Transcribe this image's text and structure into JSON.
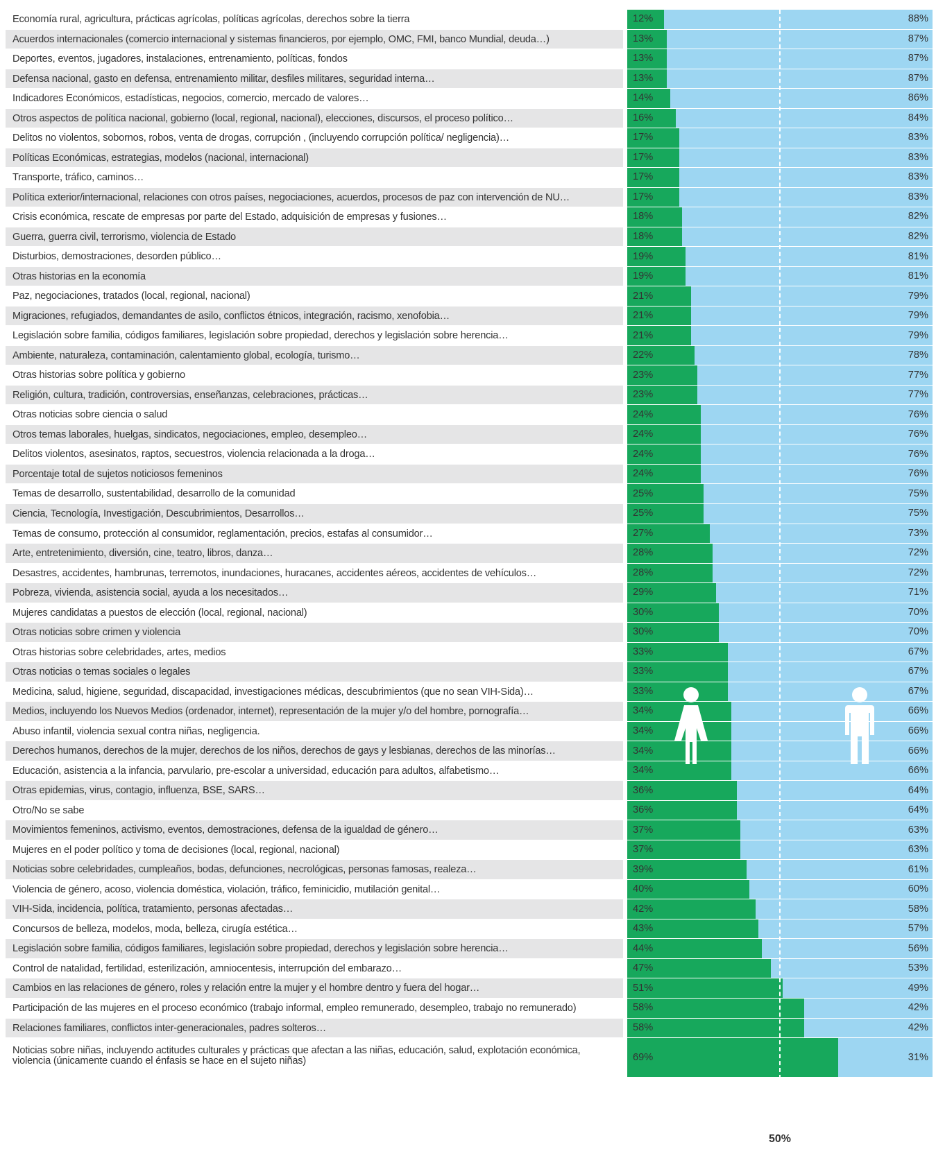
{
  "chart_data": {
    "type": "stacked-bar-horizontal",
    "categories": [
      "Economía rural, agricultura, prácticas agrícolas, políticas agrícolas, derechos sobre la tierra",
      "Acuerdos internacionales (comercio internacional y sistemas financieros, por ejemplo, OMC, FMI, banco Mundial, deuda…)",
      "Deportes, eventos, jugadores, instalaciones, entrenamiento, políticas, fondos",
      "Defensa nacional, gasto en defensa, entrenamiento militar, desfiles militares, seguridad interna…",
      "Indicadores Económicos, estadísticas, negocios, comercio, mercado de valores…",
      "Otros aspectos de política nacional, gobierno (local, regional, nacional), elecciones, discursos, el proceso político…",
      "Delitos no violentos, sobornos, robos, venta de drogas, corrupción , (incluyendo corrupción política/ negligencia)…",
      "Políticas Económicas, estrategias, modelos (nacional, internacional)",
      "Transporte, tráfico, caminos…",
      "Política exterior/internacional, relaciones con otros países, negociaciones, acuerdos, procesos de paz con intervención de NU…",
      "Crisis económica, rescate de empresas por parte del Estado, adquisición de empresas y fusiones…",
      "Guerra, guerra civil, terrorismo, violencia de Estado",
      "Disturbios, demostraciones, desorden público…",
      "Otras historias en la economía",
      "Paz, negociaciones, tratados (local, regional, nacional)",
      "Migraciones, refugiados, demandantes de asilo, conflictos étnicos, integración, racismo, xenofobia…",
      "Legislación sobre familia, códigos familiares, legislación sobre propiedad, derechos y legislación sobre herencia…",
      "Ambiente, naturaleza, contaminación, calentamiento global, ecología, turismo…",
      "Otras historias sobre política y gobierno",
      "Religión, cultura, tradición, controversias, enseñanzas, celebraciones, prácticas…",
      "Otras noticias sobre ciencia o salud",
      "Otros temas laborales, huelgas, sindicatos, negociaciones, empleo, desempleo…",
      "Delitos violentos, asesinatos, raptos, secuestros, violencia relacionada a la droga…",
      "Porcentaje total de sujetos noticiosos femeninos",
      "Temas de desarrollo, sustentabilidad, desarrollo de la comunidad",
      "Ciencia, Tecnología, Investigación, Descubrimientos, Desarrollos…",
      "Temas de consumo, protección al consumidor, reglamentación, precios, estafas al consumidor…",
      "Arte, entretenimiento, diversión, cine, teatro, libros, danza…",
      "Desastres, accidentes, hambrunas, terremotos, inundaciones, huracanes, accidentes aéreos, accidentes de vehículos…",
      "Pobreza, vivienda, asistencia social, ayuda a los necesitados…",
      "Mujeres candidatas a puestos de elección (local, regional, nacional)",
      "Otras noticias sobre crimen y violencia",
      "Otras historias sobre celebridades, artes, medios",
      "Otras noticias o temas sociales o legales",
      "Medicina, salud, higiene, seguridad, discapacidad, investigaciones médicas, descubrimientos (que no sean VIH-Sida)…",
      "Medios, incluyendo los Nuevos Medios (ordenador, internet), representación de la mujer y/o del hombre, pornografía…",
      "Abuso infantil, violencia sexual contra niñas, negligencia.",
      "Derechos humanos, derechos de la mujer, derechos de los niños, derechos de gays y lesbianas, derechos de las minorías…",
      "Educación, asistencia a la infancia, parvulario, pre-escolar a universidad, educación para adultos, alfabetismo…",
      "Otras epidemias, virus, contagio, influenza, BSE, SARS…",
      "Otro/No se sabe",
      "Movimientos femeninos, activismo, eventos, demostraciones, defensa de la igualdad de género…",
      "Mujeres en el poder político y toma de decisiones (local, regional, nacional)",
      "Noticias sobre celebridades, cumpleaños, bodas, defunciones, necrológicas, personas famosas, realeza…",
      "Violencia de género, acoso, violencia doméstica, violación, tráfico, feminicidio, mutilación genital…",
      "VIH-Sida, incidencia, política, tratamiento, personas afectadas…",
      "Concursos de belleza, modelos, moda, belleza, cirugía estética…",
      "Legislación sobre familia, códigos familiares, legislación sobre propiedad, derechos y legislación sobre herencia…",
      "Control de natalidad, fertilidad, esterilización, amniocentesis, interrupción del embarazo…",
      "Cambios en las relaciones de género, roles y relación entre la mujer y el hombre dentro y fuera del hogar…",
      "Participación de las mujeres en el proceso económico (trabajo informal, empleo remunerado, desempleo, trabajo no remunerado)",
      "Relaciones familiares, conflictos inter-generacionales, padres solteros…",
      "Noticias sobre niñas, incluyendo actitudes culturales y prácticas que afectan a las niñas, educación, salud, explotación económica, violencia (únicamente cuando el énfasis se hace en el sujeto niñas)"
    ],
    "series": [
      {
        "color": "#17a85c",
        "values": [
          12,
          13,
          13,
          13,
          14,
          16,
          17,
          17,
          17,
          17,
          18,
          18,
          19,
          19,
          21,
          21,
          21,
          22,
          23,
          23,
          24,
          24,
          24,
          24,
          25,
          25,
          27,
          28,
          28,
          29,
          30,
          30,
          33,
          33,
          33,
          34,
          34,
          34,
          34,
          36,
          36,
          37,
          37,
          39,
          40,
          42,
          43,
          44,
          47,
          51,
          58,
          58,
          69
        ],
        "value_labels": [
          "12%",
          "13%",
          "13%",
          "13%",
          "14%",
          "16%",
          "17%",
          "17%",
          "17%",
          "17%",
          "18%",
          "18%",
          "19%",
          "19%",
          "21%",
          "21%",
          "21%",
          "22%",
          "23%",
          "23%",
          "24%",
          "24%",
          "24%",
          "24%",
          "25%",
          "25%",
          "27%",
          "28%",
          "28%",
          "29%",
          "30%",
          "30%",
          "33%",
          "33%",
          "33%",
          "34%",
          "34%",
          "34%",
          "34%",
          "36%",
          "36%",
          "37%",
          "37%",
          "39%",
          "40%",
          "42%",
          "43%",
          "44%",
          "47%",
          "51%",
          "58%",
          "58%",
          "69%"
        ]
      },
      {
        "color": "#9dd6f2",
        "values": [
          88,
          87,
          87,
          87,
          86,
          84,
          83,
          83,
          83,
          83,
          82,
          82,
          81,
          81,
          79,
          79,
          79,
          78,
          77,
          77,
          76,
          76,
          76,
          76,
          75,
          75,
          73,
          72,
          72,
          71,
          70,
          70,
          67,
          67,
          67,
          66,
          66,
          66,
          66,
          64,
          64,
          63,
          63,
          61,
          60,
          58,
          57,
          56,
          53,
          49,
          42,
          42,
          31
        ],
        "value_labels": [
          "88%",
          "87%",
          "87%",
          "87%",
          "86%",
          "84%",
          "83%",
          "83%",
          "83%",
          "83%",
          "82%",
          "82%",
          "81%",
          "81%",
          "79%",
          "79%",
          "79%",
          "78%",
          "77%",
          "77%",
          "76%",
          "76%",
          "76%",
          "76%",
          "75%",
          "75%",
          "73%",
          "72%",
          "72%",
          "71%",
          "70%",
          "70%",
          "67%",
          "67%",
          "67%",
          "66%",
          "66%",
          "66%",
          "66%",
          "64%",
          "64%",
          "63%",
          "63%",
          "61%",
          "60%",
          "58%",
          "57%",
          "56%",
          "53%",
          "49%",
          "42%",
          "42%",
          "31%"
        ]
      }
    ],
    "xlim": [
      0,
      100
    ],
    "reference_line": {
      "value": 50,
      "label": "50%"
    }
  }
}
